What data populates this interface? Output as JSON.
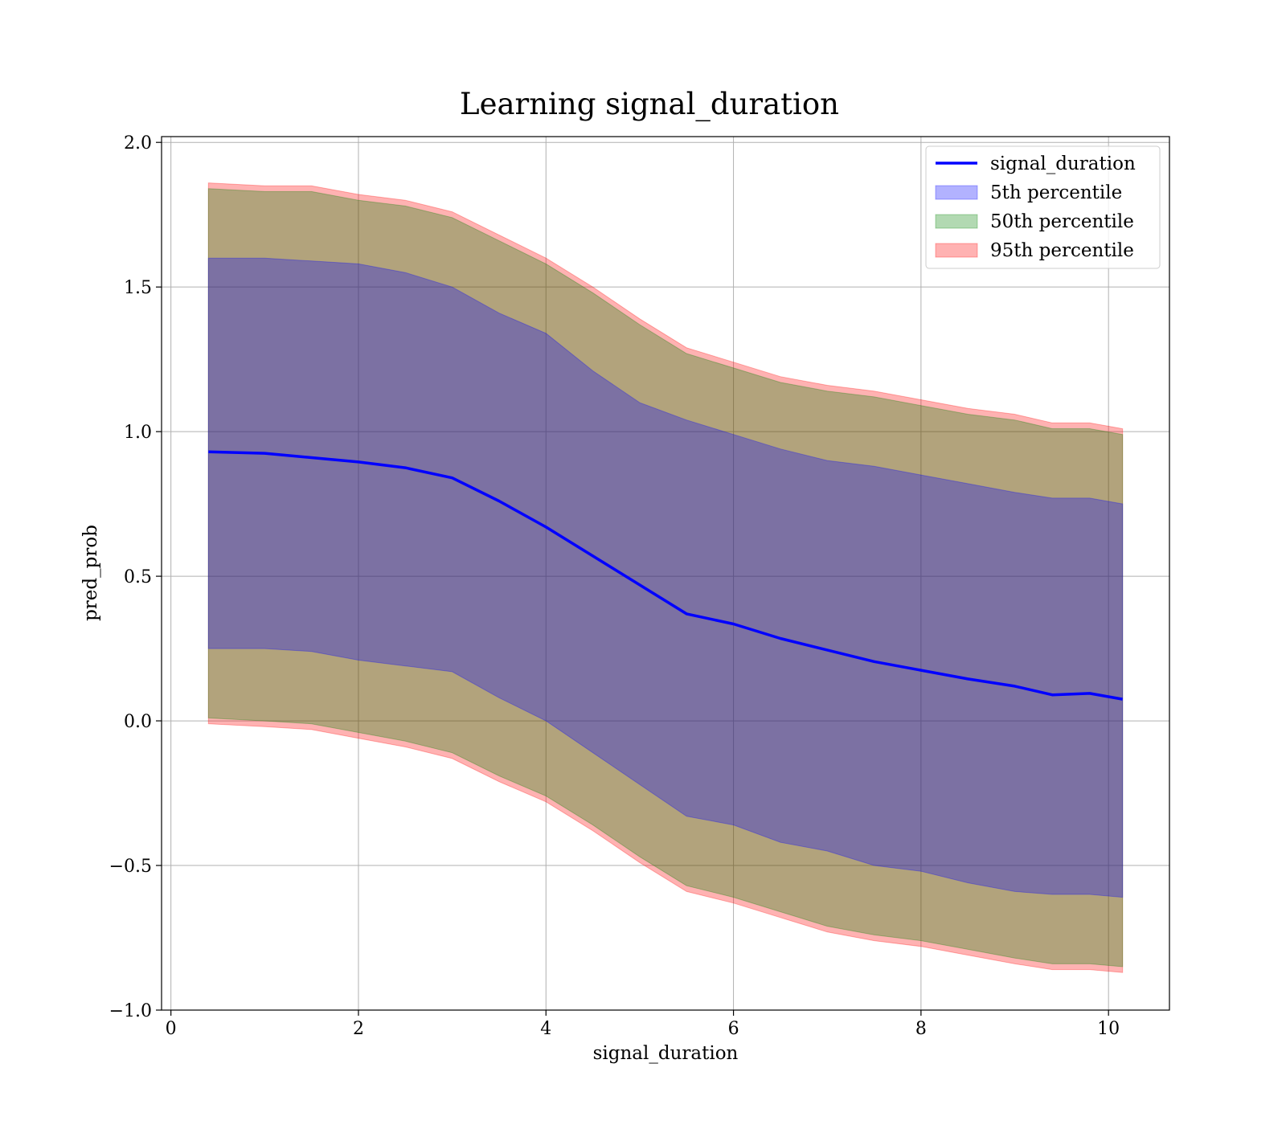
{
  "chart_data": {
    "type": "area",
    "title": "Learning signal_duration",
    "xlabel": "signal_duration",
    "ylabel": "pred_prob",
    "xlim": [
      -0.1,
      10.65
    ],
    "ylim": [
      -1.0,
      2.02
    ],
    "xticks": [
      0,
      2,
      4,
      6,
      8,
      10
    ],
    "xtick_labels": [
      "0",
      "2",
      "4",
      "6",
      "8",
      "10"
    ],
    "yticks": [
      -1.0,
      -0.5,
      0.0,
      0.5,
      1.0,
      1.5,
      2.0
    ],
    "ytick_labels": [
      "−1.0",
      "−0.5",
      "0.0",
      "0.5",
      "1.0",
      "1.5",
      "2.0"
    ],
    "grid": true,
    "legend_position": "top-right",
    "x": [
      0.4,
      1.0,
      1.5,
      2.0,
      2.5,
      3.0,
      3.5,
      4.0,
      4.5,
      5.0,
      5.5,
      6.0,
      6.5,
      7.0,
      7.5,
      8.0,
      8.5,
      9.0,
      9.4,
      9.8,
      10.15
    ],
    "line": {
      "name": "signal_duration",
      "color": "#0000ff",
      "values": [
        0.93,
        0.925,
        0.91,
        0.895,
        0.875,
        0.84,
        0.76,
        0.67,
        0.57,
        0.47,
        0.37,
        0.335,
        0.285,
        0.245,
        0.205,
        0.175,
        0.145,
        0.12,
        0.09,
        0.095,
        0.075
      ]
    },
    "bands": [
      {
        "name": "5th percentile",
        "color": "#0000ff",
        "opacity": 0.3,
        "upper": [
          1.6,
          1.6,
          1.59,
          1.58,
          1.55,
          1.5,
          1.41,
          1.34,
          1.21,
          1.1,
          1.04,
          0.99,
          0.94,
          0.9,
          0.88,
          0.85,
          0.82,
          0.79,
          0.77,
          0.77,
          0.75
        ],
        "lower": [
          0.25,
          0.25,
          0.24,
          0.21,
          0.19,
          0.17,
          0.08,
          0.0,
          -0.11,
          -0.22,
          -0.33,
          -0.36,
          -0.42,
          -0.45,
          -0.5,
          -0.52,
          -0.56,
          -0.59,
          -0.6,
          -0.6,
          -0.61
        ]
      },
      {
        "name": "50th percentile",
        "color": "#008000",
        "opacity": 0.3,
        "upper": [
          1.84,
          1.83,
          1.83,
          1.8,
          1.78,
          1.74,
          1.66,
          1.58,
          1.48,
          1.37,
          1.27,
          1.22,
          1.17,
          1.14,
          1.12,
          1.09,
          1.06,
          1.04,
          1.01,
          1.01,
          0.99
        ],
        "lower": [
          0.01,
          0.0,
          -0.01,
          -0.04,
          -0.07,
          -0.11,
          -0.19,
          -0.26,
          -0.36,
          -0.47,
          -0.57,
          -0.61,
          -0.66,
          -0.71,
          -0.74,
          -0.76,
          -0.79,
          -0.82,
          -0.84,
          -0.84,
          -0.85
        ]
      },
      {
        "name": "95th percentile",
        "color": "#ff0000",
        "opacity": 0.3,
        "upper": [
          1.86,
          1.85,
          1.85,
          1.82,
          1.8,
          1.76,
          1.68,
          1.6,
          1.5,
          1.39,
          1.29,
          1.24,
          1.19,
          1.16,
          1.14,
          1.11,
          1.08,
          1.06,
          1.03,
          1.03,
          1.01
        ],
        "lower": [
          -0.01,
          -0.02,
          -0.03,
          -0.06,
          -0.09,
          -0.13,
          -0.21,
          -0.28,
          -0.38,
          -0.49,
          -0.59,
          -0.63,
          -0.68,
          -0.73,
          -0.76,
          -0.78,
          -0.81,
          -0.84,
          -0.86,
          -0.86,
          -0.87
        ]
      }
    ]
  }
}
